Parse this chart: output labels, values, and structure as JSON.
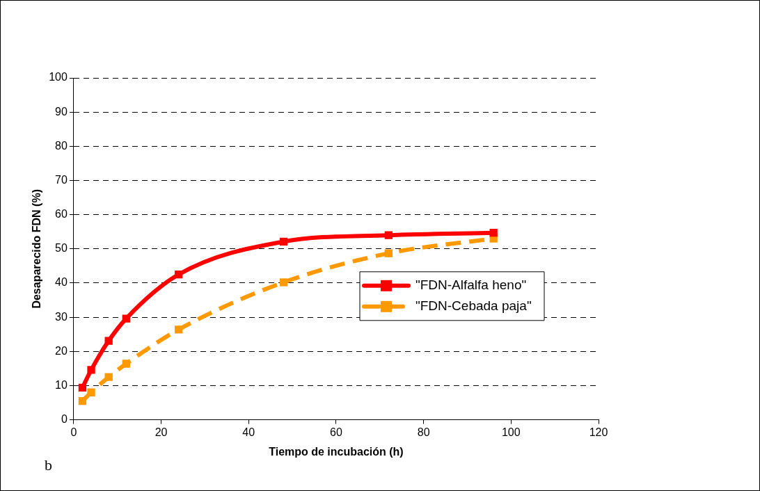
{
  "chart_data": {
    "type": "line",
    "xlabel": "Tiempo de incubación (h)",
    "ylabel": "Desaparecido FDN (%)",
    "xlim": [
      0,
      120
    ],
    "xticks": [
      0,
      20,
      40,
      60,
      80,
      100,
      120
    ],
    "ylim": [
      0,
      100
    ],
    "yticks": [
      0,
      10,
      20,
      30,
      40,
      50,
      60,
      70,
      80,
      90,
      100
    ],
    "grid": "y",
    "legend": "right",
    "marker": "square",
    "annotations": [
      "b"
    ],
    "series": [
      {
        "name": "\"FDN-Alfalfa heno\"",
        "color": "#ff0000",
        "line_style": "solid",
        "x": [
          2,
          4,
          8,
          12,
          24,
          48,
          72,
          96
        ],
        "values": [
          9.4,
          14.6,
          23.1,
          29.6,
          42.5,
          52.1,
          54.0,
          54.7
        ]
      },
      {
        "name": "\"FDN-Cebada paja\"",
        "color": "#ff9900",
        "line_style": "dashed",
        "x": [
          2,
          4,
          8,
          12,
          24,
          48,
          72,
          96
        ],
        "values": [
          5.5,
          8.0,
          12.5,
          16.4,
          26.4,
          40.2,
          48.7,
          53.0
        ]
      }
    ]
  }
}
